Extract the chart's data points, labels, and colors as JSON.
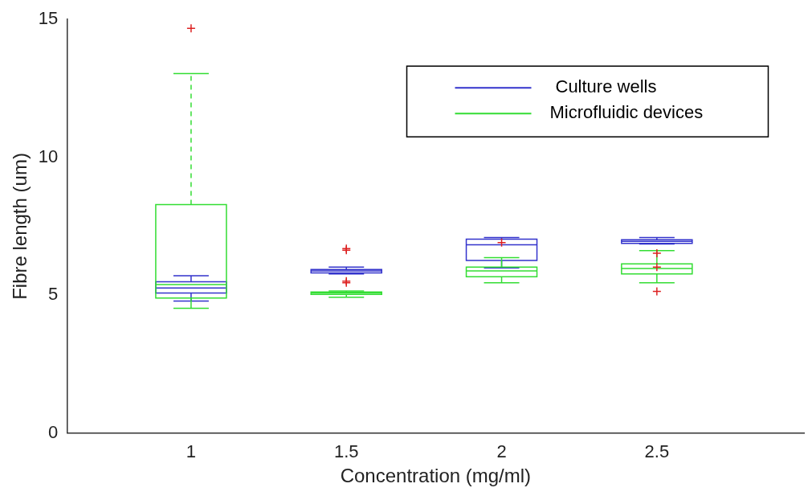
{
  "chart_data": {
    "type": "box",
    "xlabel": "Concentration (mg/ml)",
    "ylabel": "Fibre length (um)",
    "categories": [
      "1",
      "1.5",
      "2",
      "2.5"
    ],
    "ylim": [
      0,
      15
    ],
    "yticks": [
      0,
      5,
      10,
      15
    ],
    "grid": false,
    "legend": "top right",
    "series": [
      {
        "name": "Culture wells",
        "color": "#3333cc",
        "boxes": [
          {
            "low": 4.79,
            "q1": 5.08,
            "median": 5.26,
            "q3": 5.49,
            "high": 5.71
          },
          {
            "low": 5.77,
            "q1": 5.81,
            "median": 5.88,
            "q3": 5.93,
            "high": 6.02
          },
          {
            "low": 5.99,
            "q1": 6.26,
            "median": 6.83,
            "q3": 7.03,
            "high": 7.09
          },
          {
            "low": 6.86,
            "q1": 6.88,
            "median": 6.95,
            "q3": 7.01,
            "high": 7.09
          }
        ]
      },
      {
        "name": "Microfluidic devices",
        "color": "#33dd33",
        "boxes": [
          {
            "low": 4.53,
            "q1": 4.9,
            "median": 5.39,
            "q3": 8.29,
            "high": 13.04
          },
          {
            "low": 4.93,
            "q1": 5.03,
            "median": 5.08,
            "q3": 5.12,
            "high": 5.15
          },
          {
            "low": 5.45,
            "q1": 5.67,
            "median": 5.88,
            "q3": 6.02,
            "high": 6.36
          },
          {
            "low": 5.45,
            "q1": 5.77,
            "median": 5.97,
            "q3": 6.14,
            "high": 6.62
          }
        ]
      },
      {
        "type": "scatter",
        "color": "#dd2222",
        "marker": "cross",
        "x": [
          "1",
          "1.5",
          "1.5",
          "1.5",
          "1.5",
          "2",
          "2.5",
          "2.5",
          "2.5"
        ],
        "values": [
          14.68,
          6.69,
          6.63,
          5.51,
          5.45,
          6.91,
          6.52,
          6.02,
          5.14
        ]
      }
    ]
  }
}
